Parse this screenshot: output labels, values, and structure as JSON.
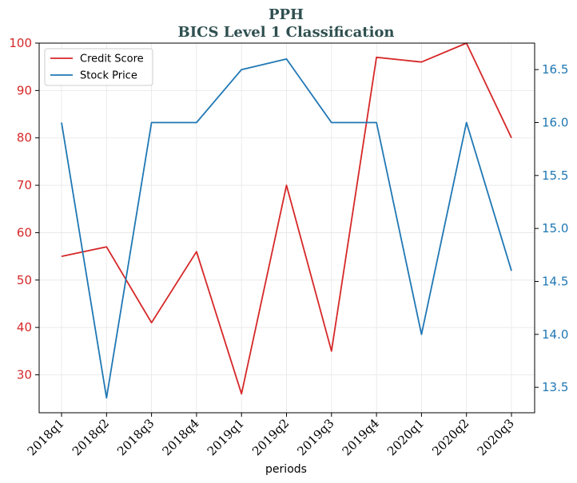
{
  "chart_data": {
    "type": "line",
    "title": "PPH",
    "subtitle": "BICS Level 1 Classification",
    "xlabel": "periods",
    "categories": [
      "2018q1",
      "2018q2",
      "2018q3",
      "2018q4",
      "2019q1",
      "2019q2",
      "2019q3",
      "2019q4",
      "2020q1",
      "2020q2",
      "2020q3"
    ],
    "series": [
      {
        "name": "Credit Score",
        "axis": "left",
        "color": "#d62728",
        "values": [
          55,
          57,
          41,
          56,
          26,
          70,
          35,
          97,
          96,
          100,
          80
        ]
      },
      {
        "name": "Stock Price",
        "axis": "right",
        "color": "#1f77b4",
        "values": [
          16.0,
          13.4,
          16.0,
          16.0,
          16.5,
          16.6,
          16.0,
          16.0,
          14.0,
          16.0,
          14.6
        ]
      }
    ],
    "y_left": {
      "ticks": [
        "30",
        "40",
        "50",
        "60",
        "70",
        "80",
        "90",
        "100"
      ],
      "tick_values": [
        30,
        40,
        50,
        60,
        70,
        80,
        90,
        100
      ],
      "ylim": [
        22,
        100
      ],
      "tick_color": "#d62728"
    },
    "y_right": {
      "ticks": [
        "13.5",
        "14.0",
        "14.5",
        "15.0",
        "15.5",
        "16.0",
        "16.5"
      ],
      "tick_values": [
        13.5,
        14.0,
        14.5,
        15.0,
        15.5,
        16.0,
        16.5
      ],
      "ylim": [
        13.26,
        16.75
      ],
      "tick_color": "#1f77b4"
    },
    "grid": true,
    "legend": "top-left"
  }
}
